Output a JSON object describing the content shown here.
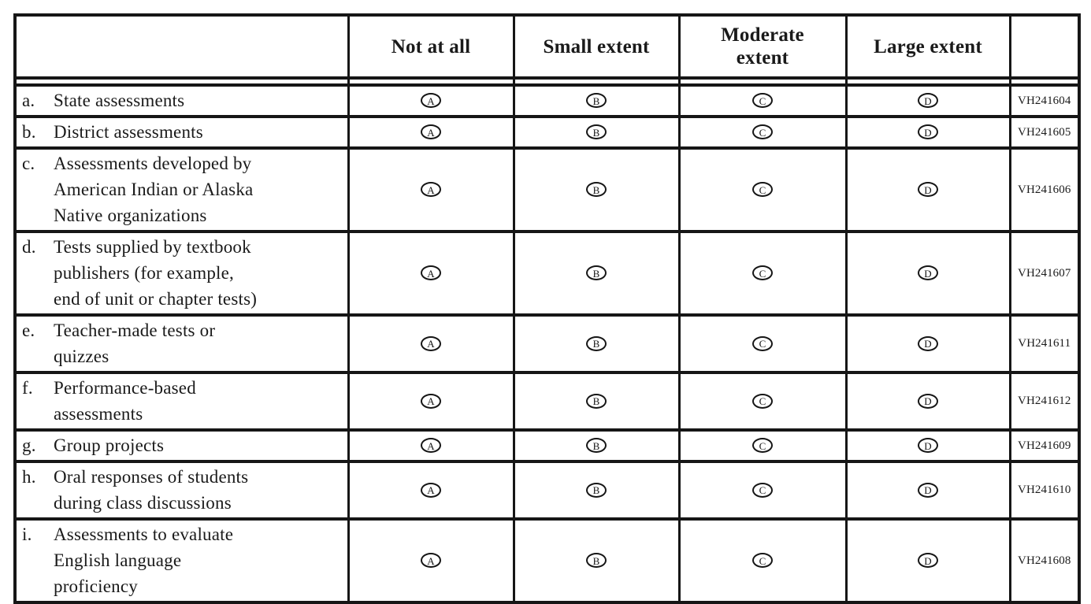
{
  "colors": {
    "border": "#161616",
    "text": "#1a1a1a",
    "background": "#ffffff"
  },
  "table": {
    "header": {
      "blank_label": "",
      "options": [
        {
          "label": "Not at all"
        },
        {
          "label": "Small extent"
        },
        {
          "label": [
            "Moderate",
            "extent"
          ]
        },
        {
          "label": "Large extent"
        }
      ],
      "code_label": ""
    },
    "option_letters": [
      "A",
      "B",
      "C",
      "D"
    ],
    "rows": [
      {
        "letter": "a.",
        "label": "State assessments",
        "code": "VH241604"
      },
      {
        "letter": "b.",
        "label": "District assessments",
        "code": "VH241605"
      },
      {
        "letter": "c.",
        "label": [
          "Assessments developed by",
          "American Indian or Alaska",
          "Native organizations"
        ],
        "code": "VH241606"
      },
      {
        "letter": "d.",
        "label": [
          "Tests supplied by textbook",
          "publishers (for example,",
          "end of unit or chapter tests)"
        ],
        "code": "VH241607"
      },
      {
        "letter": "e.",
        "label": [
          "Teacher-made tests or",
          "quizzes"
        ],
        "code": "VH241611"
      },
      {
        "letter": "f.",
        "label": [
          "Performance-based",
          "assessments"
        ],
        "code": "VH241612"
      },
      {
        "letter": "g.",
        "label": "Group projects",
        "code": "VH241609"
      },
      {
        "letter": "h.",
        "label": [
          "Oral responses of students",
          "during class discussions"
        ],
        "code": "VH241610"
      },
      {
        "letter": "i.",
        "label": [
          "Assessments to evaluate",
          "English language",
          "proficiency"
        ],
        "code": "VH241608"
      }
    ]
  }
}
